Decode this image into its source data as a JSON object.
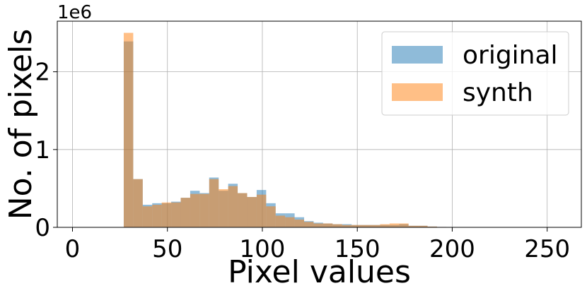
{
  "chart_data": {
    "type": "bar",
    "xlabel": "Pixel values",
    "ylabel": "No. of pixels",
    "y_offset_text": "1e6",
    "xlim": [
      -8,
      268
    ],
    "ylim": [
      0,
      2.65
    ],
    "xticks": [
      0,
      50,
      100,
      150,
      200,
      250
    ],
    "yticks": [
      0,
      1,
      2
    ],
    "grid": true,
    "legend_position": "top-right",
    "bin_width": 5,
    "bin_starts": [
      27,
      32,
      37,
      42,
      47,
      52,
      57,
      62,
      67,
      72,
      77,
      82,
      87,
      92,
      97,
      102,
      107,
      112,
      117,
      122,
      127,
      132,
      137,
      142,
      147,
      152,
      157,
      162,
      167,
      172,
      177,
      182,
      187,
      192
    ],
    "series": [
      {
        "name": "original",
        "color": "#1f77b4",
        "values": [
          2.39,
          0.62,
          0.29,
          0.31,
          0.31,
          0.33,
          0.38,
          0.47,
          0.44,
          0.64,
          0.47,
          0.56,
          0.44,
          0.39,
          0.48,
          0.31,
          0.18,
          0.18,
          0.13,
          0.08,
          0.06,
          0.05,
          0.04,
          0.04,
          0.03,
          0.03,
          0.03,
          0.03,
          0.03,
          0.04,
          0.02,
          0.02,
          0.01,
          0.005
        ]
      },
      {
        "name": "synth",
        "color": "#ff7f0e",
        "values": [
          2.5,
          0.62,
          0.27,
          0.29,
          0.32,
          0.32,
          0.38,
          0.43,
          0.43,
          0.62,
          0.49,
          0.53,
          0.44,
          0.39,
          0.42,
          0.27,
          0.15,
          0.13,
          0.1,
          0.07,
          0.05,
          0.05,
          0.04,
          0.03,
          0.03,
          0.03,
          0.03,
          0.04,
          0.05,
          0.05,
          0.02,
          0.02,
          0.01,
          0.005
        ]
      }
    ]
  }
}
